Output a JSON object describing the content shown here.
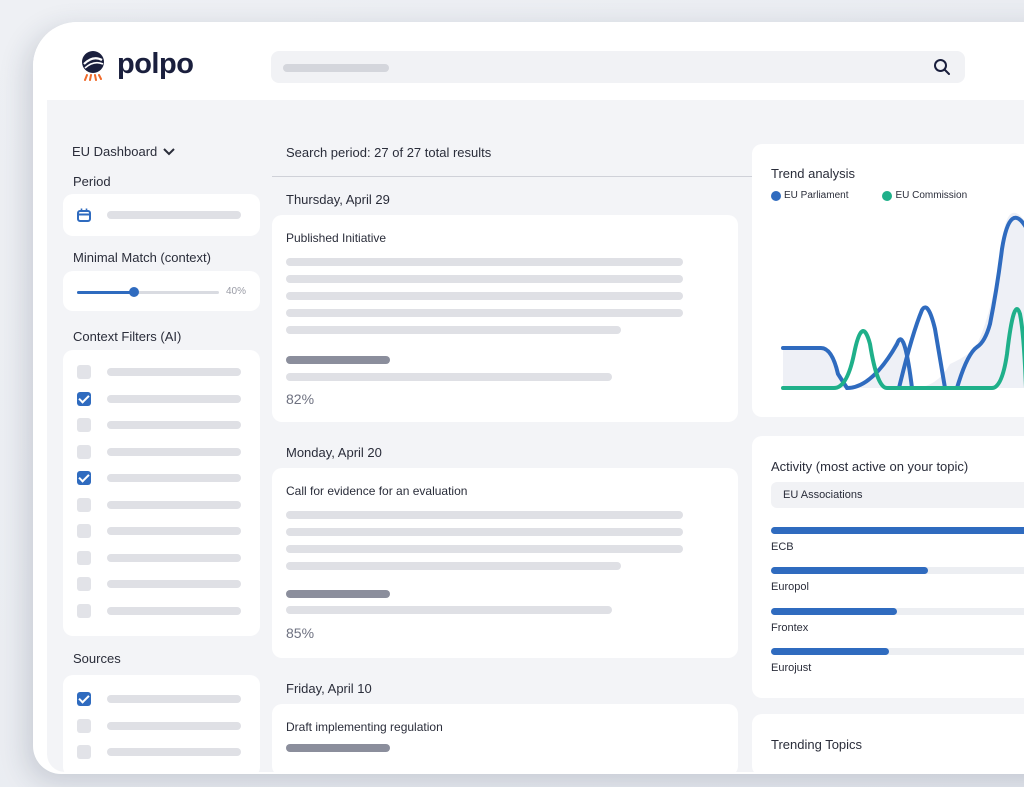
{
  "app": {
    "name": "polpo"
  },
  "search": {
    "placeholder": ""
  },
  "sidebar": {
    "dashboard": "EU Dashboard",
    "period_label": "Period",
    "minimal_match_label": "Minimal Match (context)",
    "minimal_match_value": "40%",
    "minimal_match_level": 0.4,
    "context_filters_label": "Context Filters (AI)",
    "context_filters_checked": [
      false,
      true,
      false,
      false,
      true,
      false,
      false,
      false,
      false,
      false
    ],
    "sources_label": "Sources",
    "sources_checked": [
      true,
      false,
      false
    ]
  },
  "results": {
    "header": "Search period: 27 of 27 total results",
    "groups": [
      {
        "date": "Thursday, April 29",
        "title": "Published Initiative",
        "match": "82%"
      },
      {
        "date": "Monday, April 20",
        "title": "Call for evidence for an evaluation",
        "match": "85%"
      },
      {
        "date": "Friday, April 10",
        "title": "Draft implementing regulation"
      }
    ]
  },
  "trend": {
    "title": "Trend analysis",
    "legend": [
      {
        "name": "EU Parliament",
        "color": "#2f6bbf"
      },
      {
        "name": "EU Commission",
        "color": "#1fb08a"
      }
    ]
  },
  "activity": {
    "title": "Activity (most active on your topic)",
    "items": [
      {
        "label": "EU Associations",
        "highlight": true
      },
      {
        "label": "ECB",
        "level": 1.0
      },
      {
        "label": "Europol",
        "level": 0.56
      },
      {
        "label": "Frontex",
        "level": 0.45
      },
      {
        "label": "Eurojust",
        "level": 0.42
      }
    ]
  },
  "trending": {
    "title": "Trending Topics"
  },
  "colors": {
    "accent": "#2f6bbf",
    "secondary": "#1fb08a",
    "logo_orange": "#f06a2a"
  }
}
